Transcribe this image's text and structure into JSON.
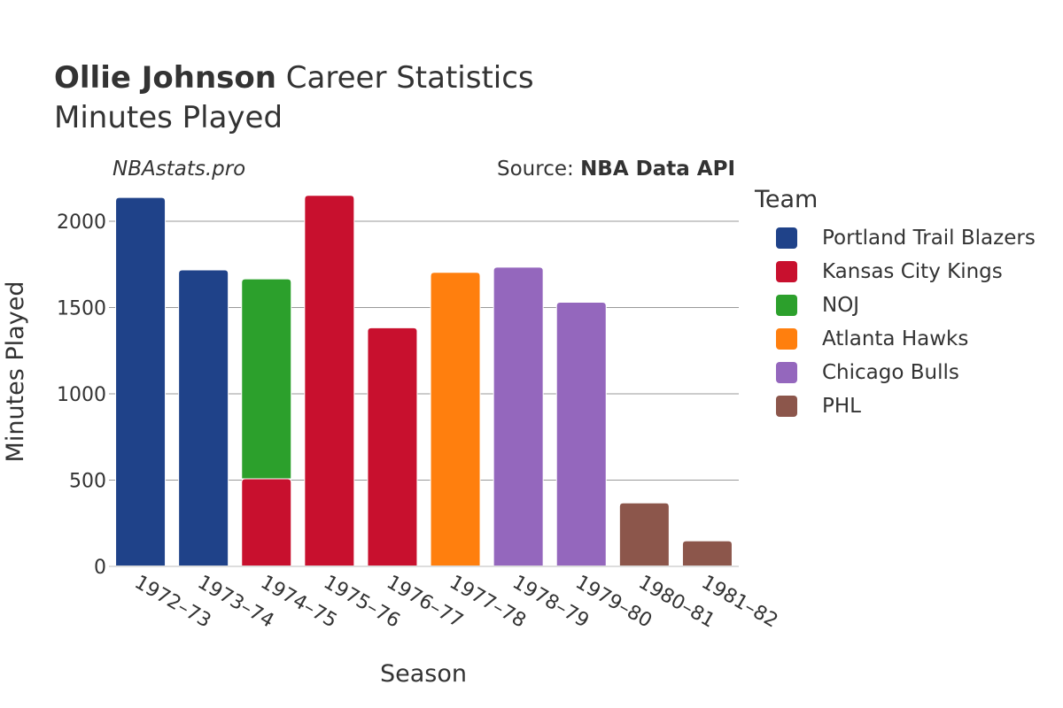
{
  "header": {
    "player": "Ollie Johnson",
    "title_rest": "Career Statistics",
    "subtitle": "Minutes Played",
    "site": "NBAstats.pro",
    "source_prefix": "Source: ",
    "source_name": "NBA Data API"
  },
  "legend": {
    "title": "Team",
    "items": [
      {
        "label": "Portland Trail Blazers",
        "color": "#1f4289"
      },
      {
        "label": "Kansas City Kings",
        "color": "#c8102e"
      },
      {
        "label": "NOJ",
        "color": "#2ca02c"
      },
      {
        "label": "Atlanta Hawks",
        "color": "#ff7f0e"
      },
      {
        "label": "Chicago Bulls",
        "color": "#9467bd"
      },
      {
        "label": "PHL",
        "color": "#8c564b"
      }
    ]
  },
  "chart_data": {
    "type": "bar",
    "stacked": true,
    "xlabel": "Season",
    "ylabel": "Minutes Played",
    "ylim": [
      0,
      2200
    ],
    "yticks": [
      0,
      500,
      1000,
      1500,
      2000
    ],
    "grid": true,
    "categories": [
      "1972–73",
      "1973–74",
      "1974–75",
      "1975–76",
      "1976–77",
      "1977–78",
      "1978–79",
      "1979–80",
      "1980–81",
      "1981–82"
    ],
    "series": [
      {
        "name": "Portland Trail Blazers",
        "color": "#1f4289",
        "values": [
          2138,
          1718,
          null,
          null,
          null,
          null,
          null,
          null,
          null,
          null
        ]
      },
      {
        "name": "Kansas City Kings",
        "color": "#c8102e",
        "values": [
          null,
          null,
          508,
          2150,
          1383,
          null,
          null,
          null,
          null,
          null
        ]
      },
      {
        "name": "NOJ",
        "color": "#2ca02c",
        "values": [
          null,
          null,
          1158,
          null,
          null,
          null,
          null,
          null,
          null,
          null
        ]
      },
      {
        "name": "Atlanta Hawks",
        "color": "#ff7f0e",
        "values": [
          null,
          null,
          null,
          null,
          null,
          1704,
          null,
          null,
          null,
          null
        ]
      },
      {
        "name": "Chicago Bulls",
        "color": "#9467bd",
        "values": [
          null,
          null,
          null,
          null,
          null,
          null,
          1734,
          1531,
          null,
          null
        ]
      },
      {
        "name": "PHL",
        "color": "#8c564b",
        "values": [
          null,
          null,
          null,
          null,
          null,
          null,
          null,
          null,
          368,
          148
        ]
      }
    ]
  }
}
